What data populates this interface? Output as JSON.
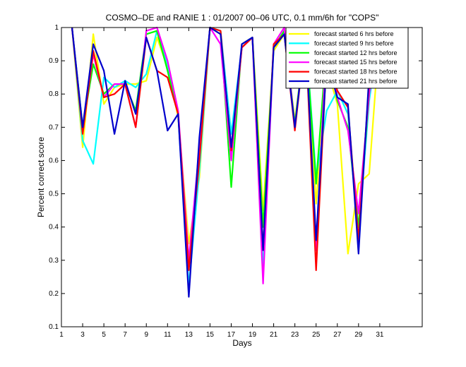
{
  "chart_data": {
    "type": "line",
    "title": "COSMO–DE and RANIE 1 : 01/2007 00–06 UTC, 0.1 mm/6h for \"COPS\"",
    "xlabel": "Days",
    "ylabel": "Percent correct score",
    "xlim": [
      1,
      35
    ],
    "ylim": [
      0.1,
      1
    ],
    "xticks": [
      1,
      3,
      5,
      7,
      9,
      11,
      13,
      15,
      17,
      19,
      21,
      23,
      25,
      27,
      29,
      31
    ],
    "yticks": [
      0.1,
      0.2,
      0.3,
      0.4,
      0.5,
      0.6,
      0.7,
      0.8,
      0.9,
      1
    ],
    "ytick_labels": [
      "0.1",
      "0.2",
      "0.3",
      "0.4",
      "0.5",
      "0.6",
      "0.7",
      "0.8",
      "0.9",
      "1"
    ],
    "legend_position": "top-right",
    "x": [
      2,
      3,
      4,
      5,
      6,
      7,
      8,
      9,
      10,
      11,
      12,
      13,
      14,
      15,
      16,
      17,
      18,
      19,
      20,
      21,
      22,
      23,
      24,
      25,
      26,
      27,
      28,
      29,
      30,
      31
    ],
    "series": [
      {
        "name": "forecast started 6 hrs before",
        "color": "#ffff00",
        "values": [
          1.0,
          0.64,
          0.98,
          0.77,
          0.82,
          0.83,
          0.83,
          0.84,
          0.97,
          0.88,
          0.73,
          0.35,
          0.55,
          1.0,
          0.98,
          0.63,
          0.94,
          0.97,
          0.45,
          0.93,
          0.98,
          0.72,
          0.97,
          0.47,
          0.88,
          0.77,
          0.32,
          0.53,
          0.56,
          0.99
        ]
      },
      {
        "name": "forecast started 9 hrs before",
        "color": "#00ffff",
        "values": [
          1.0,
          0.66,
          0.59,
          0.85,
          0.82,
          0.84,
          0.82,
          0.86,
          0.99,
          0.89,
          0.74,
          0.22,
          0.57,
          1.0,
          0.99,
          0.68,
          0.94,
          0.97,
          0.27,
          0.94,
          0.99,
          0.7,
          0.98,
          0.55,
          0.75,
          0.81,
          0.74,
          0.38,
          0.78,
          1.0
        ]
      },
      {
        "name": "forecast started 12 hrs before",
        "color": "#00ff00",
        "values": [
          1.0,
          0.7,
          0.89,
          0.8,
          0.83,
          0.83,
          0.75,
          0.98,
          0.99,
          0.87,
          0.74,
          0.28,
          0.63,
          1.0,
          0.99,
          0.52,
          0.95,
          0.97,
          0.4,
          0.94,
          0.99,
          0.71,
          0.98,
          0.53,
          0.95,
          0.78,
          0.7,
          0.4,
          0.8,
          1.0
        ]
      },
      {
        "name": "forecast started 15 hrs before",
        "color": "#ff00ff",
        "values": [
          1.0,
          0.69,
          0.92,
          0.79,
          0.83,
          0.83,
          0.7,
          0.99,
          1.0,
          0.9,
          0.75,
          0.3,
          0.64,
          1.0,
          0.95,
          0.6,
          0.94,
          0.97,
          0.23,
          0.95,
          1.0,
          0.7,
          0.98,
          0.33,
          0.97,
          0.79,
          0.69,
          0.44,
          0.8,
          1.0
        ]
      },
      {
        "name": "forecast started 18 hrs before",
        "color": "#ff0000",
        "values": [
          1.0,
          0.68,
          0.93,
          0.79,
          0.8,
          0.83,
          0.7,
          0.97,
          0.87,
          0.85,
          0.74,
          0.27,
          0.6,
          1.0,
          0.99,
          0.63,
          0.94,
          0.97,
          0.33,
          0.95,
          0.98,
          0.69,
          0.98,
          0.27,
          0.92,
          0.81,
          0.76,
          0.36,
          0.84,
          1.0
        ]
      },
      {
        "name": "forecast started 21 hrs before",
        "color": "#0000cc",
        "values": [
          1.0,
          0.7,
          0.95,
          0.87,
          0.68,
          0.84,
          0.74,
          0.97,
          0.87,
          0.69,
          0.74,
          0.19,
          0.67,
          1.0,
          0.98,
          0.64,
          0.95,
          0.97,
          0.33,
          0.94,
          0.98,
          0.7,
          0.98,
          0.36,
          0.9,
          0.79,
          0.77,
          0.32,
          0.86,
          1.0
        ]
      }
    ]
  }
}
